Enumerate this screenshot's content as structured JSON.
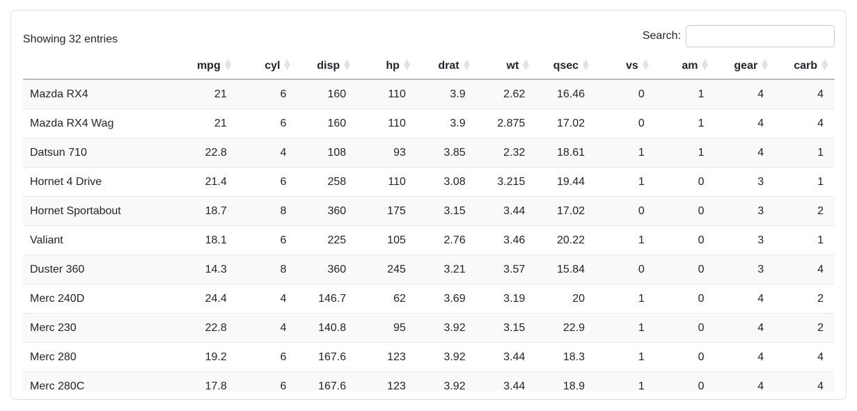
{
  "info": {
    "showing_text": "Showing 32 entries"
  },
  "search": {
    "label": "Search:",
    "value": "",
    "placeholder": ""
  },
  "table": {
    "columns": [
      "",
      "mpg",
      "cyl",
      "disp",
      "hp",
      "drat",
      "wt",
      "qsec",
      "vs",
      "am",
      "gear",
      "carb"
    ],
    "rows": [
      [
        "Mazda RX4",
        "21",
        "6",
        "160",
        "110",
        "3.9",
        "2.62",
        "16.46",
        "0",
        "1",
        "4",
        "4"
      ],
      [
        "Mazda RX4 Wag",
        "21",
        "6",
        "160",
        "110",
        "3.9",
        "2.875",
        "17.02",
        "0",
        "1",
        "4",
        "4"
      ],
      [
        "Datsun 710",
        "22.8",
        "4",
        "108",
        "93",
        "3.85",
        "2.32",
        "18.61",
        "1",
        "1",
        "4",
        "1"
      ],
      [
        "Hornet 4 Drive",
        "21.4",
        "6",
        "258",
        "110",
        "3.08",
        "3.215",
        "19.44",
        "1",
        "0",
        "3",
        "1"
      ],
      [
        "Hornet Sportabout",
        "18.7",
        "8",
        "360",
        "175",
        "3.15",
        "3.44",
        "17.02",
        "0",
        "0",
        "3",
        "2"
      ],
      [
        "Valiant",
        "18.1",
        "6",
        "225",
        "105",
        "2.76",
        "3.46",
        "20.22",
        "1",
        "0",
        "3",
        "1"
      ],
      [
        "Duster 360",
        "14.3",
        "8",
        "360",
        "245",
        "3.21",
        "3.57",
        "15.84",
        "0",
        "0",
        "3",
        "4"
      ],
      [
        "Merc 240D",
        "24.4",
        "4",
        "146.7",
        "62",
        "3.69",
        "3.19",
        "20",
        "1",
        "0",
        "4",
        "2"
      ],
      [
        "Merc 230",
        "22.8",
        "4",
        "140.8",
        "95",
        "3.92",
        "3.15",
        "22.9",
        "1",
        "0",
        "4",
        "2"
      ],
      [
        "Merc 280",
        "19.2",
        "6",
        "167.6",
        "123",
        "3.92",
        "3.44",
        "18.3",
        "1",
        "0",
        "4",
        "4"
      ],
      [
        "Merc 280C",
        "17.8",
        "6",
        "167.6",
        "123",
        "3.92",
        "3.44",
        "18.9",
        "1",
        "0",
        "4",
        "4"
      ]
    ],
    "sort_icon": "sort-both-diamond"
  },
  "colors": {
    "text": "#212529",
    "card_border": "#dee2e6",
    "header_border": "#b4bac0",
    "row_border": "#ebebeb",
    "row_stripe": "#f9f9f9",
    "sort_icon": "#e2e2e2",
    "input_border": "#c8cdd2"
  }
}
